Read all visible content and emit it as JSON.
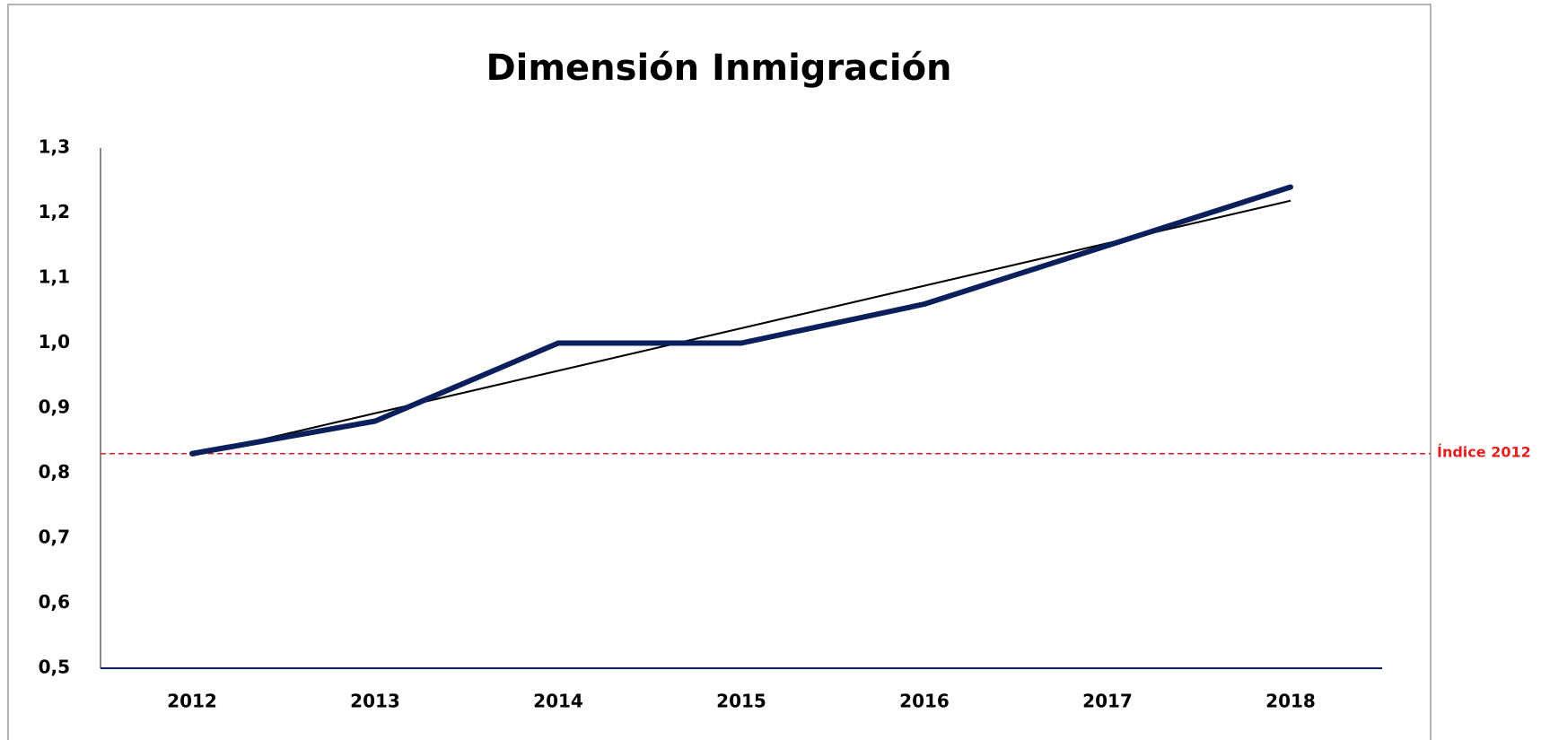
{
  "chart_data": {
    "type": "line",
    "title": "Dimensión Inmigración",
    "categories": [
      "2012",
      "2013",
      "2014",
      "2015",
      "2016",
      "2017",
      "2018"
    ],
    "series": [
      {
        "color": "#0b1f5c",
        "values": [
          0.83,
          0.88,
          1.0,
          1.0,
          1.06,
          1.15,
          1.24
        ]
      }
    ],
    "trendline": {
      "type": "linear",
      "color": "#000000"
    },
    "reference_line": {
      "value": 0.83,
      "label": "Índice 2012",
      "color": "#e02020"
    },
    "ylim": [
      0.5,
      1.3
    ],
    "yticks": [
      {
        "value": 0.5,
        "label": "0,5"
      },
      {
        "value": 0.6,
        "label": "0,6"
      },
      {
        "value": 0.7,
        "label": "0,7"
      },
      {
        "value": 0.8,
        "label": "0,8"
      },
      {
        "value": 0.9,
        "label": "0,9"
      },
      {
        "value": 1.0,
        "label": "1,0"
      },
      {
        "value": 1.1,
        "label": "1,1"
      },
      {
        "value": 1.2,
        "label": "1,2"
      },
      {
        "value": 1.3,
        "label": "1,3"
      }
    ],
    "grid": false
  }
}
